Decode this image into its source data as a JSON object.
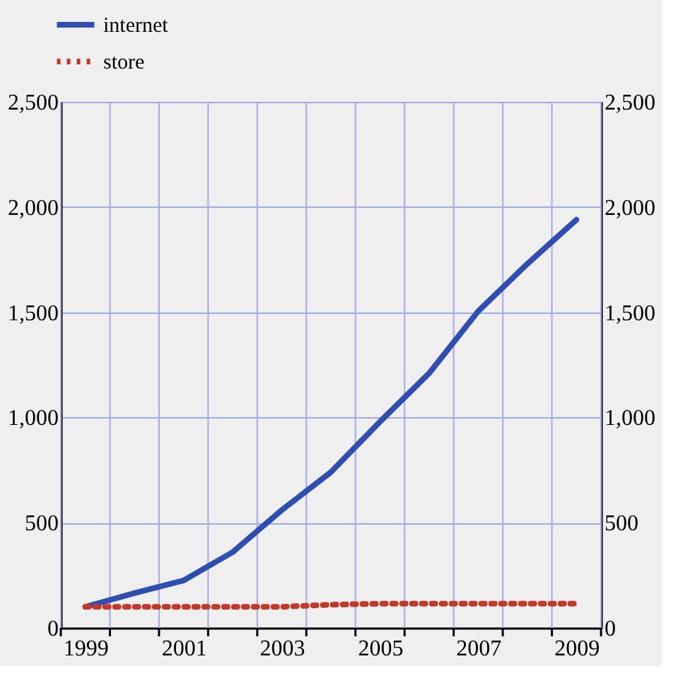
{
  "chart_data": {
    "type": "line",
    "x": [
      1999,
      2000,
      2001,
      2002,
      2003,
      2004,
      2005,
      2006,
      2007,
      2008,
      2009
    ],
    "series": [
      {
        "name": "internet",
        "color": "#2f4eb0",
        "line_style": "solid",
        "values": [
          100,
          165,
          225,
          360,
          560,
          740,
          980,
          1210,
          1505,
          1730,
          1940
        ]
      },
      {
        "name": "store",
        "color": "#c0392b",
        "line_style": "dotted",
        "values": [
          100,
          100,
          100,
          100,
          100,
          110,
          115,
          115,
          115,
          115,
          115
        ]
      }
    ],
    "xlim": [
      1998.5,
      2009.5
    ],
    "xticks": [
      1999,
      2001,
      2003,
      2005,
      2007,
      2009,
      {
        "value": 1998.5,
        "label": null
      },
      {
        "value": 1999.5,
        "label": null
      },
      {
        "value": 2000.5,
        "label": null
      },
      {
        "value": 2001.5,
        "label": null
      },
      {
        "value": 2002.5,
        "label": null
      },
      {
        "value": 2003.5,
        "label": null
      },
      {
        "value": 2004.5,
        "label": null
      },
      {
        "value": 2005.5,
        "label": null
      },
      {
        "value": 2006.5,
        "label": null
      },
      {
        "value": 2007.5,
        "label": null
      },
      {
        "value": 2008.5,
        "label": null
      },
      {
        "value": 2009.5,
        "label": null
      }
    ],
    "ylim": [
      0,
      2500
    ],
    "yticks": [
      0,
      500,
      {
        "value": 1000,
        "label": "1,000"
      },
      {
        "value": 1500,
        "label": "1,500"
      },
      {
        "value": 2000,
        "label": "2,000"
      },
      {
        "value": 2500,
        "label": "2,500"
      }
    ],
    "y2lim": [
      0,
      2500
    ],
    "y2ticks": [
      0,
      500,
      {
        "value": 1000,
        "label": "1,000"
      },
      {
        "value": 1500,
        "label": "1,500"
      },
      {
        "value": 2000,
        "label": "2,000"
      },
      {
        "value": 2500,
        "label": "2,500"
      }
    ],
    "grid": true,
    "legend": "top left"
  }
}
